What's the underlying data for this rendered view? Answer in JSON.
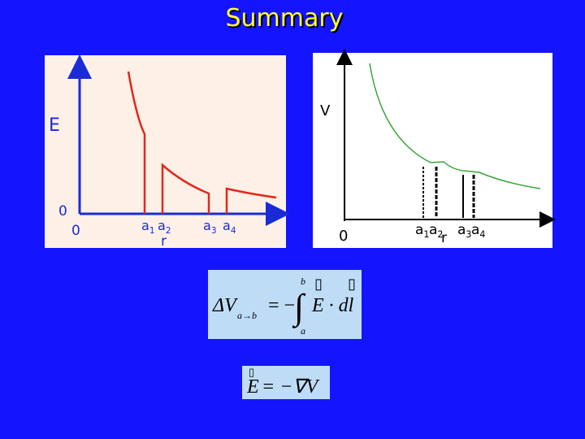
{
  "header": {
    "title": "Summary"
  },
  "left_panel": {
    "y_label": "E",
    "y_zero": "0",
    "x_zero": "0",
    "x_label": "r",
    "x_marks": [
      {
        "letter": "a",
        "index": "1"
      },
      {
        "letter": "a",
        "index": "2"
      },
      {
        "letter": "a",
        "index": "3"
      },
      {
        "letter": "a",
        "index": "4"
      }
    ]
  },
  "right_panel": {
    "y_label": "V",
    "x_zero": "0",
    "x_label": "r",
    "x_marks": [
      {
        "letter": "a",
        "index": "1"
      },
      {
        "letter": "a",
        "index": "2"
      },
      {
        "letter": "a",
        "index": "3"
      },
      {
        "letter": "a",
        "index": "4"
      }
    ]
  },
  "formulas": [
    {
      "delta_v": "ΔV",
      "subscript": "a→b",
      "equals": "= −",
      "integral": "∫",
      "upper": "b",
      "lower": "a",
      "integrand": "E · dl",
      "vector_marks": [
        "▯",
        "▯"
      ]
    },
    {
      "lhs": "E",
      "rhs": "= −∇V",
      "vector_mark": "▯"
    }
  ]
}
